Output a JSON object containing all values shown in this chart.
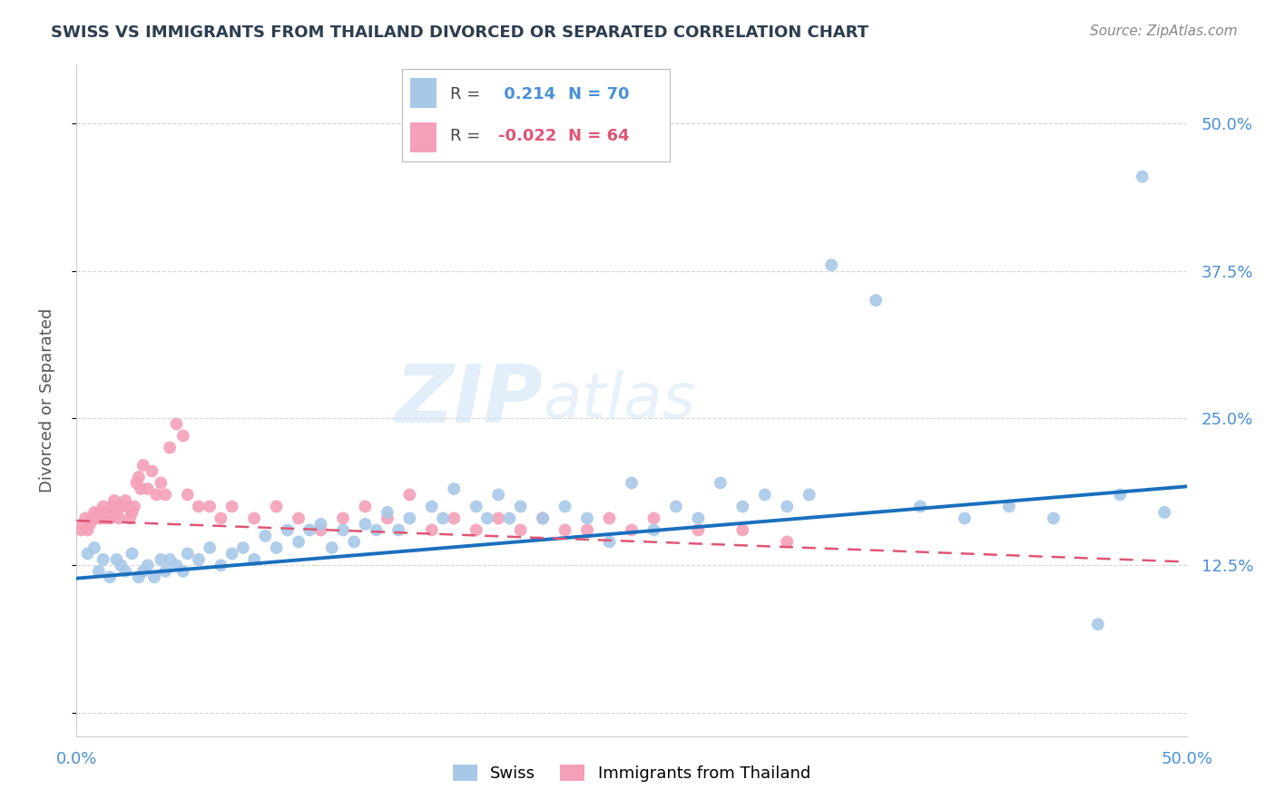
{
  "title": "SWISS VS IMMIGRANTS FROM THAILAND DIVORCED OR SEPARATED CORRELATION CHART",
  "source": "Source: ZipAtlas.com",
  "ylabel": "Divorced or Separated",
  "xlim": [
    0.0,
    0.5
  ],
  "ylim": [
    -0.02,
    0.55
  ],
  "yticks": [
    0.0,
    0.125,
    0.25,
    0.375,
    0.5
  ],
  "ytick_labels": [
    "",
    "12.5%",
    "25.0%",
    "37.5%",
    "50.0%"
  ],
  "grid_color": "#cccccc",
  "background_color": "#ffffff",
  "watermark_zip": "ZIP",
  "watermark_atlas": "atlas",
  "swiss_color": "#a8c8e8",
  "thai_color": "#f4a0b8",
  "swiss_line_color": "#1a6fbd",
  "thai_line_color": "#e05575",
  "swiss_R": 0.214,
  "swiss_N": 70,
  "thai_R": -0.022,
  "thai_N": 64,
  "swiss_x": [
    0.005,
    0.008,
    0.01,
    0.012,
    0.015,
    0.018,
    0.02,
    0.022,
    0.025,
    0.028,
    0.03,
    0.032,
    0.035,
    0.038,
    0.04,
    0.042,
    0.045,
    0.048,
    0.05,
    0.055,
    0.06,
    0.065,
    0.07,
    0.075,
    0.08,
    0.085,
    0.09,
    0.095,
    0.1,
    0.105,
    0.11,
    0.115,
    0.12,
    0.125,
    0.13,
    0.135,
    0.14,
    0.145,
    0.15,
    0.16,
    0.165,
    0.17,
    0.18,
    0.185,
    0.19,
    0.195,
    0.2,
    0.21,
    0.22,
    0.23,
    0.24,
    0.25,
    0.26,
    0.27,
    0.28,
    0.29,
    0.3,
    0.31,
    0.32,
    0.33,
    0.34,
    0.36,
    0.38,
    0.4,
    0.42,
    0.44,
    0.46,
    0.47,
    0.48,
    0.49
  ],
  "swiss_y": [
    0.135,
    0.14,
    0.12,
    0.13,
    0.115,
    0.13,
    0.125,
    0.12,
    0.135,
    0.115,
    0.12,
    0.125,
    0.115,
    0.13,
    0.12,
    0.13,
    0.125,
    0.12,
    0.135,
    0.13,
    0.14,
    0.125,
    0.135,
    0.14,
    0.13,
    0.15,
    0.14,
    0.155,
    0.145,
    0.155,
    0.16,
    0.14,
    0.155,
    0.145,
    0.16,
    0.155,
    0.17,
    0.155,
    0.165,
    0.175,
    0.165,
    0.19,
    0.175,
    0.165,
    0.185,
    0.165,
    0.175,
    0.165,
    0.175,
    0.165,
    0.145,
    0.195,
    0.155,
    0.175,
    0.165,
    0.195,
    0.175,
    0.185,
    0.175,
    0.185,
    0.38,
    0.35,
    0.175,
    0.165,
    0.175,
    0.165,
    0.075,
    0.185,
    0.455,
    0.17
  ],
  "thai_x": [
    0.002,
    0.003,
    0.004,
    0.005,
    0.006,
    0.007,
    0.008,
    0.009,
    0.01,
    0.011,
    0.012,
    0.013,
    0.014,
    0.015,
    0.016,
    0.017,
    0.018,
    0.019,
    0.02,
    0.021,
    0.022,
    0.023,
    0.024,
    0.025,
    0.026,
    0.027,
    0.028,
    0.029,
    0.03,
    0.032,
    0.034,
    0.036,
    0.038,
    0.04,
    0.042,
    0.045,
    0.048,
    0.05,
    0.055,
    0.06,
    0.065,
    0.07,
    0.08,
    0.09,
    0.1,
    0.11,
    0.12,
    0.13,
    0.14,
    0.15,
    0.16,
    0.17,
    0.18,
    0.19,
    0.2,
    0.21,
    0.22,
    0.23,
    0.24,
    0.25,
    0.26,
    0.28,
    0.3,
    0.32
  ],
  "thai_y": [
    0.155,
    0.16,
    0.165,
    0.155,
    0.16,
    0.165,
    0.17,
    0.165,
    0.17,
    0.165,
    0.175,
    0.165,
    0.17,
    0.165,
    0.175,
    0.18,
    0.17,
    0.165,
    0.175,
    0.175,
    0.18,
    0.175,
    0.165,
    0.17,
    0.175,
    0.195,
    0.2,
    0.19,
    0.21,
    0.19,
    0.205,
    0.185,
    0.195,
    0.185,
    0.225,
    0.245,
    0.235,
    0.185,
    0.175,
    0.175,
    0.165,
    0.175,
    0.165,
    0.175,
    0.165,
    0.155,
    0.165,
    0.175,
    0.165,
    0.185,
    0.155,
    0.165,
    0.155,
    0.165,
    0.155,
    0.165,
    0.155,
    0.155,
    0.165,
    0.155,
    0.165,
    0.155,
    0.155,
    0.145
  ]
}
